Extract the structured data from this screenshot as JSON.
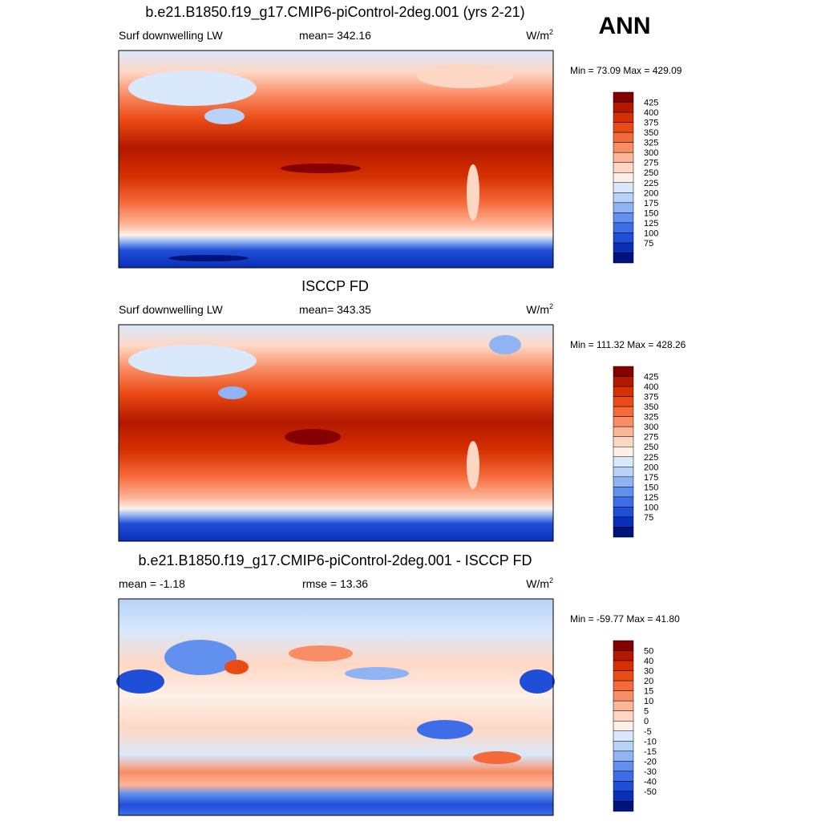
{
  "figure_label": "ANN",
  "panels": [
    {
      "title": "b.e21.B1850.f19_g17.CMIP6-piControl-2deg.001 (yrs 2-21)",
      "left": "Surf downwelling LW",
      "center": "mean= 342.16",
      "units": {
        "text": "W/m",
        "superscript": "2"
      },
      "range_text": "Min =  73.09 Max = 429.09",
      "colorbar": {
        "labels": [
          425,
          400,
          375,
          350,
          325,
          300,
          275,
          250,
          225,
          200,
          175,
          150,
          125,
          100,
          75
        ],
        "colors": [
          "#870000",
          "#b31800",
          "#d63000",
          "#ea4a14",
          "#f56a3a",
          "#f98e66",
          "#fcb597",
          "#fed7c4",
          "#fdf0e8",
          "#d9e8fb",
          "#b9d2f8",
          "#8fb3f3",
          "#6290ee",
          "#3d6ee8",
          "#1f4ed8",
          "#0a2fb8",
          "#00137a"
        ]
      }
    },
    {
      "title": "ISCCP FD",
      "left": "Surf downwelling LW",
      "center": "mean= 343.35",
      "units": {
        "text": "W/m",
        "superscript": "2"
      },
      "range_text": "Min = 111.32 Max = 428.26",
      "colorbar": {
        "labels": [
          425,
          400,
          375,
          350,
          325,
          300,
          275,
          250,
          225,
          200,
          175,
          150,
          125,
          100,
          75
        ],
        "colors": [
          "#870000",
          "#b31800",
          "#d63000",
          "#ea4a14",
          "#f56a3a",
          "#f98e66",
          "#fcb597",
          "#fed7c4",
          "#fdf0e8",
          "#d9e8fb",
          "#b9d2f8",
          "#8fb3f3",
          "#6290ee",
          "#3d6ee8",
          "#1f4ed8",
          "#0a2fb8",
          "#00137a"
        ]
      }
    },
    {
      "title": "b.e21.B1850.f19_g17.CMIP6-piControl-2deg.001 - ISCCP FD",
      "left": "mean =  -1.18",
      "center": "rmse =  13.36",
      "units": {
        "text": "W/m",
        "superscript": "2"
      },
      "range_text": "Min = -59.77 Max =  41.80",
      "colorbar": {
        "labels": [
          50,
          40,
          30,
          20,
          15,
          10,
          5,
          0,
          -5,
          -10,
          -15,
          -20,
          -30,
          -40,
          -50
        ],
        "colors": [
          "#870000",
          "#b31800",
          "#d63000",
          "#ea4a14",
          "#f56a3a",
          "#f98e66",
          "#fcb597",
          "#fed7c4",
          "#fdf0e8",
          "#d9e8fb",
          "#b9d2f8",
          "#8fb3f3",
          "#6290ee",
          "#3d6ee8",
          "#1f4ed8",
          "#0a2fb8",
          "#00137a"
        ]
      }
    }
  ]
}
